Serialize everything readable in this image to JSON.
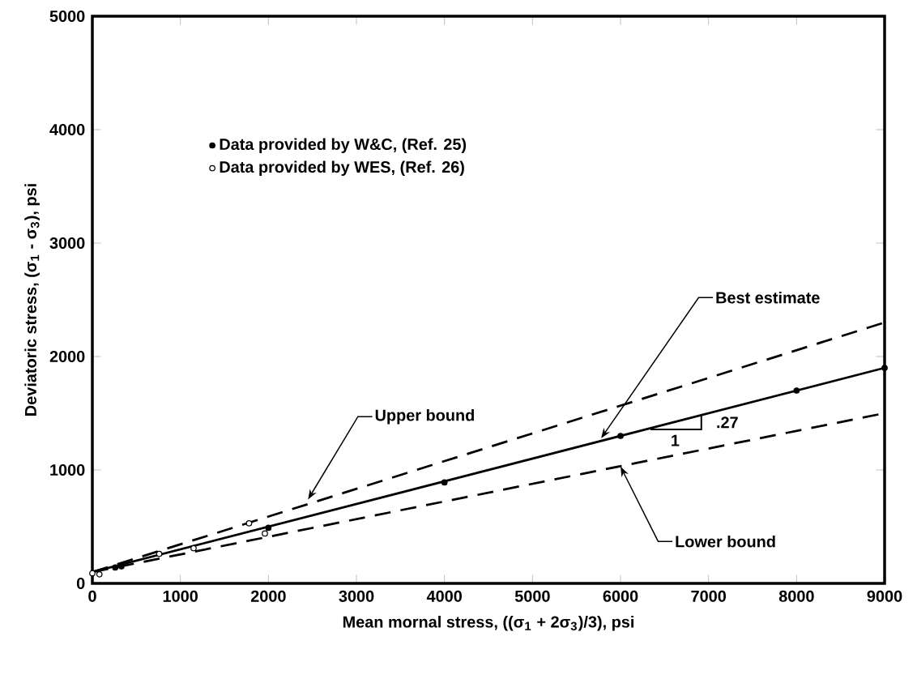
{
  "chart_data": {
    "type": "scatter",
    "xlabel": "Mean mornal stress, ((σ$_{1}$ + 2σ$_{3}$)/3), psi",
    "ylabel": "Deviatoric stress, (σ$_{1}$ - σ$_{3}$), psi",
    "xlim": [
      0,
      9000
    ],
    "ylim": [
      0,
      5000
    ],
    "xticks": [
      0,
      1000,
      2000,
      3000,
      4000,
      5000,
      6000,
      7000,
      8000,
      9000
    ],
    "yticks": [
      0,
      1000,
      2000,
      3000,
      4000,
      5000
    ],
    "grid": false,
    "legend": "top left",
    "series": [
      {
        "name": "Data provided by W&C, (Ref. 25)",
        "marker": "circle",
        "color": "#000000",
        "x": [
          260,
          330,
          2000,
          4000,
          6000,
          8000,
          9000
        ],
        "values": [
          140,
          150,
          490,
          890,
          1300,
          1700,
          1900
        ]
      },
      {
        "name": "Data provided by WES, (Ref. 26)",
        "marker": "circle",
        "color": "#000000",
        "x": [
          0,
          80,
          760,
          1150,
          1780,
          1960
        ],
        "values": [
          90,
          80,
          260,
          310,
          530,
          440
        ]
      },
      {
        "type": "line",
        "line_style": "dashed",
        "marker": "none",
        "color": "#000000",
        "x": [
          0,
          9000
        ],
        "values": [
          100,
          2300
        ]
      },
      {
        "type": "line",
        "line_style": "solid",
        "marker": "none",
        "color": "#000000",
        "x": [
          0,
          9000
        ],
        "values": [
          100,
          1900
        ]
      },
      {
        "type": "line",
        "line_style": "dashed",
        "marker": "none",
        "color": "#000000",
        "x": [
          0,
          9000
        ],
        "values": [
          100,
          1500
        ]
      }
    ],
    "annotations": [
      {
        "text": "Upper bound",
        "x": 2450,
        "y": 740
      },
      {
        "text": "Best estimate",
        "x": 5780,
        "y": 1280
      },
      {
        "text": "Lower bound",
        "x": 6000,
        "y": 1030
      },
      "1",
      {
        "text": ".27",
        "x": 6918,
        "y": 1480
      }
    ]
  }
}
